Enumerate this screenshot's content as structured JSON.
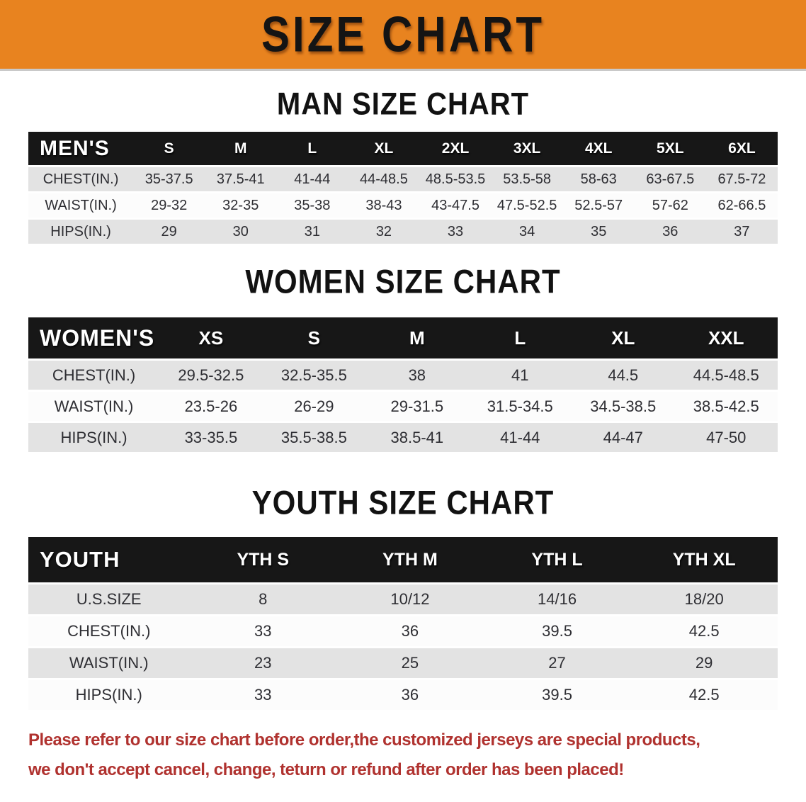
{
  "banner": {
    "title": "SIZE CHART",
    "bg_color": "#E8831F",
    "text_color": "#141414"
  },
  "colors": {
    "table_header_bg": "#171717",
    "table_header_text": "#FFFFFF",
    "row_stripe_gray": "#E3E3E3",
    "row_stripe_white": "#FCFCFC",
    "disclaimer_red": "#B0322F"
  },
  "sections": {
    "men": {
      "heading": "MAN SIZE CHART",
      "table": {
        "header": {
          "label": "MEN'S",
          "columns": [
            "S",
            "M",
            "L",
            "XL",
            "2XL",
            "3XL",
            "4XL",
            "5XL",
            "6XL"
          ]
        },
        "rows": [
          {
            "label": "CHEST(IN.)",
            "values": [
              "35-37.5",
              "37.5-41",
              "41-44",
              "44-48.5",
              "48.5-53.5",
              "53.5-58",
              "58-63",
              "63-67.5",
              "67.5-72"
            ]
          },
          {
            "label": "WAIST(IN.)",
            "values": [
              "29-32",
              "32-35",
              "35-38",
              "38-43",
              "43-47.5",
              "47.5-52.5",
              "52.5-57",
              "57-62",
              "62-66.5"
            ]
          },
          {
            "label": "HIPS(IN.)",
            "values": [
              "29",
              "30",
              "31",
              "32",
              "33",
              "34",
              "35",
              "36",
              "37"
            ]
          }
        ]
      }
    },
    "women": {
      "heading": "WOMEN SIZE CHART",
      "table": {
        "header": {
          "label": "WOMEN'S",
          "columns": [
            "XS",
            "S",
            "M",
            "L",
            "XL",
            "XXL"
          ]
        },
        "rows": [
          {
            "label": "CHEST(IN.)",
            "values": [
              "29.5-32.5",
              "32.5-35.5",
              "38",
              "41",
              "44.5",
              "44.5-48.5"
            ]
          },
          {
            "label": "WAIST(IN.)",
            "values": [
              "23.5-26",
              "26-29",
              "29-31.5",
              "31.5-34.5",
              "34.5-38.5",
              "38.5-42.5"
            ]
          },
          {
            "label": "HIPS(IN.)",
            "values": [
              "33-35.5",
              "35.5-38.5",
              "38.5-41",
              "41-44",
              "44-47",
              "47-50"
            ]
          }
        ]
      }
    },
    "youth": {
      "heading": "YOUTH SIZE CHART",
      "table": {
        "header": {
          "label": "YOUTH",
          "columns": [
            "YTH S",
            "YTH M",
            "YTH L",
            "YTH XL"
          ]
        },
        "rows": [
          {
            "label": "U.S.SIZE",
            "values": [
              "8",
              "10/12",
              "14/16",
              "18/20"
            ]
          },
          {
            "label": "CHEST(IN.)",
            "values": [
              "33",
              "36",
              "39.5",
              "42.5"
            ]
          },
          {
            "label": "WAIST(IN.)",
            "values": [
              "23",
              "25",
              "27",
              "29"
            ]
          },
          {
            "label": "HIPS(IN.)",
            "values": [
              "33",
              "36",
              "39.5",
              "42.5"
            ]
          }
        ]
      }
    }
  },
  "disclaimer": {
    "line1": "Please refer to our size chart before order,the customized jerseys are special products,",
    "line2": "we don't accept cancel, change, teturn or refund after order has been placed!"
  }
}
